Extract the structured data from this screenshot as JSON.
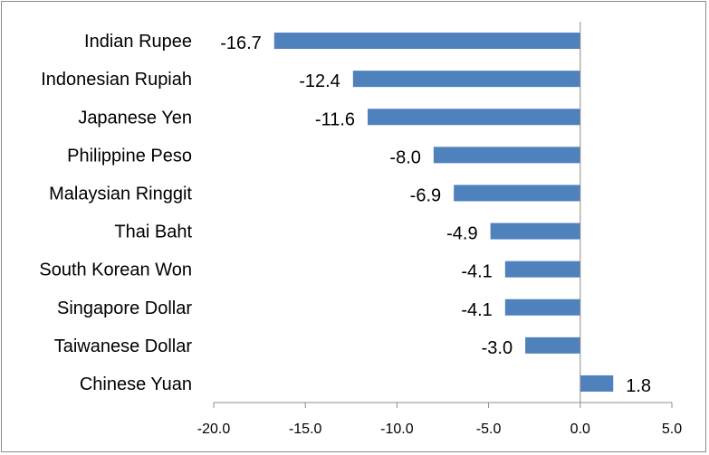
{
  "chart_data": {
    "type": "bar",
    "orientation": "horizontal",
    "title": "",
    "xlabel": "",
    "ylabel": "",
    "categories": [
      "Indian Rupee",
      "Indonesian Rupiah",
      "Japanese Yen",
      "Philippine Peso",
      "Malaysian Ringgit",
      "Thai Baht",
      "South Korean Won",
      "Singapore Dollar",
      "Taiwanese Dollar",
      "Chinese Yuan"
    ],
    "values": [
      -16.7,
      -12.4,
      -11.6,
      -8.0,
      -6.9,
      -4.9,
      -4.1,
      -4.1,
      -3.0,
      1.8
    ],
    "value_labels": [
      "-16.7",
      "-12.4",
      "-11.6",
      "-8.0",
      "-6.9",
      "-4.9",
      "-4.1",
      "-4.1",
      "-3.0",
      "1.8"
    ],
    "xlim": [
      -20,
      5
    ],
    "xticks": [
      -20,
      -15,
      -10,
      -5,
      0,
      5
    ],
    "xtick_labels": [
      "-20.0",
      "-15.0",
      "-10.0",
      "-5.0",
      "0.0",
      "5.0"
    ],
    "grid": false,
    "legend": "none",
    "bar_color": "#4f81bd",
    "axis_color": "#8c8c8c"
  }
}
